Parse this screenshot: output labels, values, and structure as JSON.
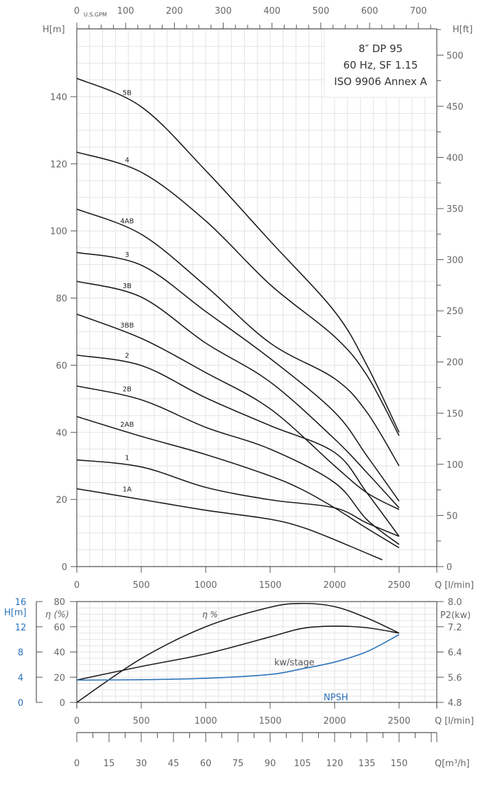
{
  "chart_data": [
    {
      "type": "line",
      "title": [
        "8″ DP 95",
        "60 Hz, SF 1.15",
        "ISO 9906 Annex A"
      ],
      "xlabel": "Q [l/min]",
      "ylabel": "H[m]",
      "ylabel_right": "H[ft]",
      "xlabel_top": "U.S.GPM",
      "xlim": [
        0,
        2790
      ],
      "ylim": [
        0,
        160
      ],
      "x_ticks": [
        0,
        500,
        1000,
        1500,
        2000,
        2500
      ],
      "y_ticks": [
        0,
        20,
        40,
        60,
        80,
        100,
        120,
        140
      ],
      "top_ticks_gpm": [
        0,
        100,
        200,
        300,
        400,
        500,
        600,
        700
      ],
      "right_ticks_ft": [
        0,
        50,
        100,
        150,
        200,
        250,
        300,
        350,
        400,
        450,
        500
      ],
      "grid": true,
      "series": [
        {
          "name": "5B",
          "x": [
            0,
            500,
            1000,
            1500,
            2000,
            2250,
            2500
          ],
          "y": [
            145.5,
            137,
            118,
            97,
            76,
            60,
            40
          ]
        },
        {
          "name": "4",
          "x": [
            0,
            500,
            1000,
            1500,
            2000,
            2250,
            2500
          ],
          "y": [
            123.5,
            117.5,
            103,
            84,
            68.5,
            57,
            39
          ]
        },
        {
          "name": "4AB",
          "x": [
            0,
            500,
            1000,
            1500,
            2000,
            2250,
            2500
          ],
          "y": [
            106.5,
            99,
            83.6,
            66.6,
            56,
            46,
            30
          ]
        },
        {
          "name": "3",
          "x": [
            0,
            500,
            1000,
            1500,
            2000,
            2250,
            2500
          ],
          "y": [
            93.6,
            89.8,
            76,
            62,
            46,
            33,
            19.5
          ]
        },
        {
          "name": "3B",
          "x": [
            0,
            500,
            1000,
            1500,
            2000,
            2250,
            2500
          ],
          "y": [
            85,
            80.3,
            66.6,
            55,
            38,
            28,
            17.5
          ]
        },
        {
          "name": "3BB",
          "x": [
            0,
            500,
            1000,
            1500,
            2000,
            2250,
            2500
          ],
          "y": [
            75.2,
            68,
            57.8,
            47,
            30,
            22,
            17
          ]
        },
        {
          "name": "2",
          "x": [
            0,
            500,
            1000,
            1500,
            2000,
            2250,
            2500
          ],
          "y": [
            63,
            59.9,
            50.3,
            42,
            34,
            22,
            9
          ]
        },
        {
          "name": "2B",
          "x": [
            0,
            500,
            1000,
            1500,
            2000,
            2250,
            2500
          ],
          "y": [
            53.8,
            49.7,
            41.5,
            35,
            25,
            14,
            6.6
          ]
        },
        {
          "name": "2AB",
          "x": [
            0,
            500,
            1000,
            1500,
            1750,
            2000,
            2250,
            2500
          ],
          "y": [
            44.7,
            38.8,
            33.4,
            27,
            22.9,
            17.5,
            11.4,
            5.6
          ]
        },
        {
          "name": "1",
          "x": [
            0,
            500,
            1000,
            1500,
            2000,
            2250,
            2500
          ],
          "y": [
            31.8,
            29.7,
            23.6,
            19.9,
            17.5,
            13,
            9
          ]
        },
        {
          "name": "1A",
          "x": [
            0,
            500,
            1000,
            1500,
            1750,
            2000,
            2370
          ],
          "y": [
            23.2,
            20,
            16.8,
            14.1,
            11.7,
            8,
            2
          ]
        }
      ]
    },
    {
      "type": "line",
      "xlabel": "Q [l/min]",
      "ylabel": "η (%)",
      "ylabel_left_outer": "H[m]",
      "ylabel_right": "P2(kw)",
      "xlim": [
        0,
        2790
      ],
      "ylim": [
        0,
        80
      ],
      "x_ticks": [
        0,
        500,
        1000,
        1500,
        2000,
        2500
      ],
      "y_ticks": [
        0,
        20,
        40,
        60,
        80
      ],
      "h_ticks": [
        0,
        4,
        8,
        12,
        16
      ],
      "p2_ticks": [
        "4.8",
        "5.6",
        "6.4",
        "7.2",
        "8.0"
      ],
      "grid": true,
      "series": [
        {
          "name": "η %",
          "axis": "eta_percent",
          "x": [
            0,
            500,
            1000,
            1500,
            1750,
            2000,
            2250,
            2500
          ],
          "y": [
            0,
            34.8,
            60,
            75.5,
            78.5,
            76,
            67,
            55
          ]
        },
        {
          "name": "kw/stage",
          "axis": "P2_kw",
          "x": [
            0,
            500,
            1000,
            1500,
            1750,
            2000,
            2250,
            2500
          ],
          "y": [
            5.51,
            5.94,
            6.34,
            6.88,
            7.15,
            7.22,
            7.17,
            7.0
          ]
        },
        {
          "name": "NPSH",
          "axis": "H_m",
          "color": "#2a72b8",
          "x": [
            0,
            500,
            1000,
            1500,
            1750,
            2000,
            2250,
            2500
          ],
          "y": [
            3.54,
            3.6,
            3.83,
            4.44,
            5.34,
            6.4,
            8.05,
            10.76
          ]
        }
      ]
    },
    {
      "type": "axis",
      "xlabel": "Q[m³/h]",
      "x_ticks": [
        0,
        15,
        30,
        45,
        60,
        75,
        90,
        105,
        120,
        135,
        150
      ]
    }
  ]
}
